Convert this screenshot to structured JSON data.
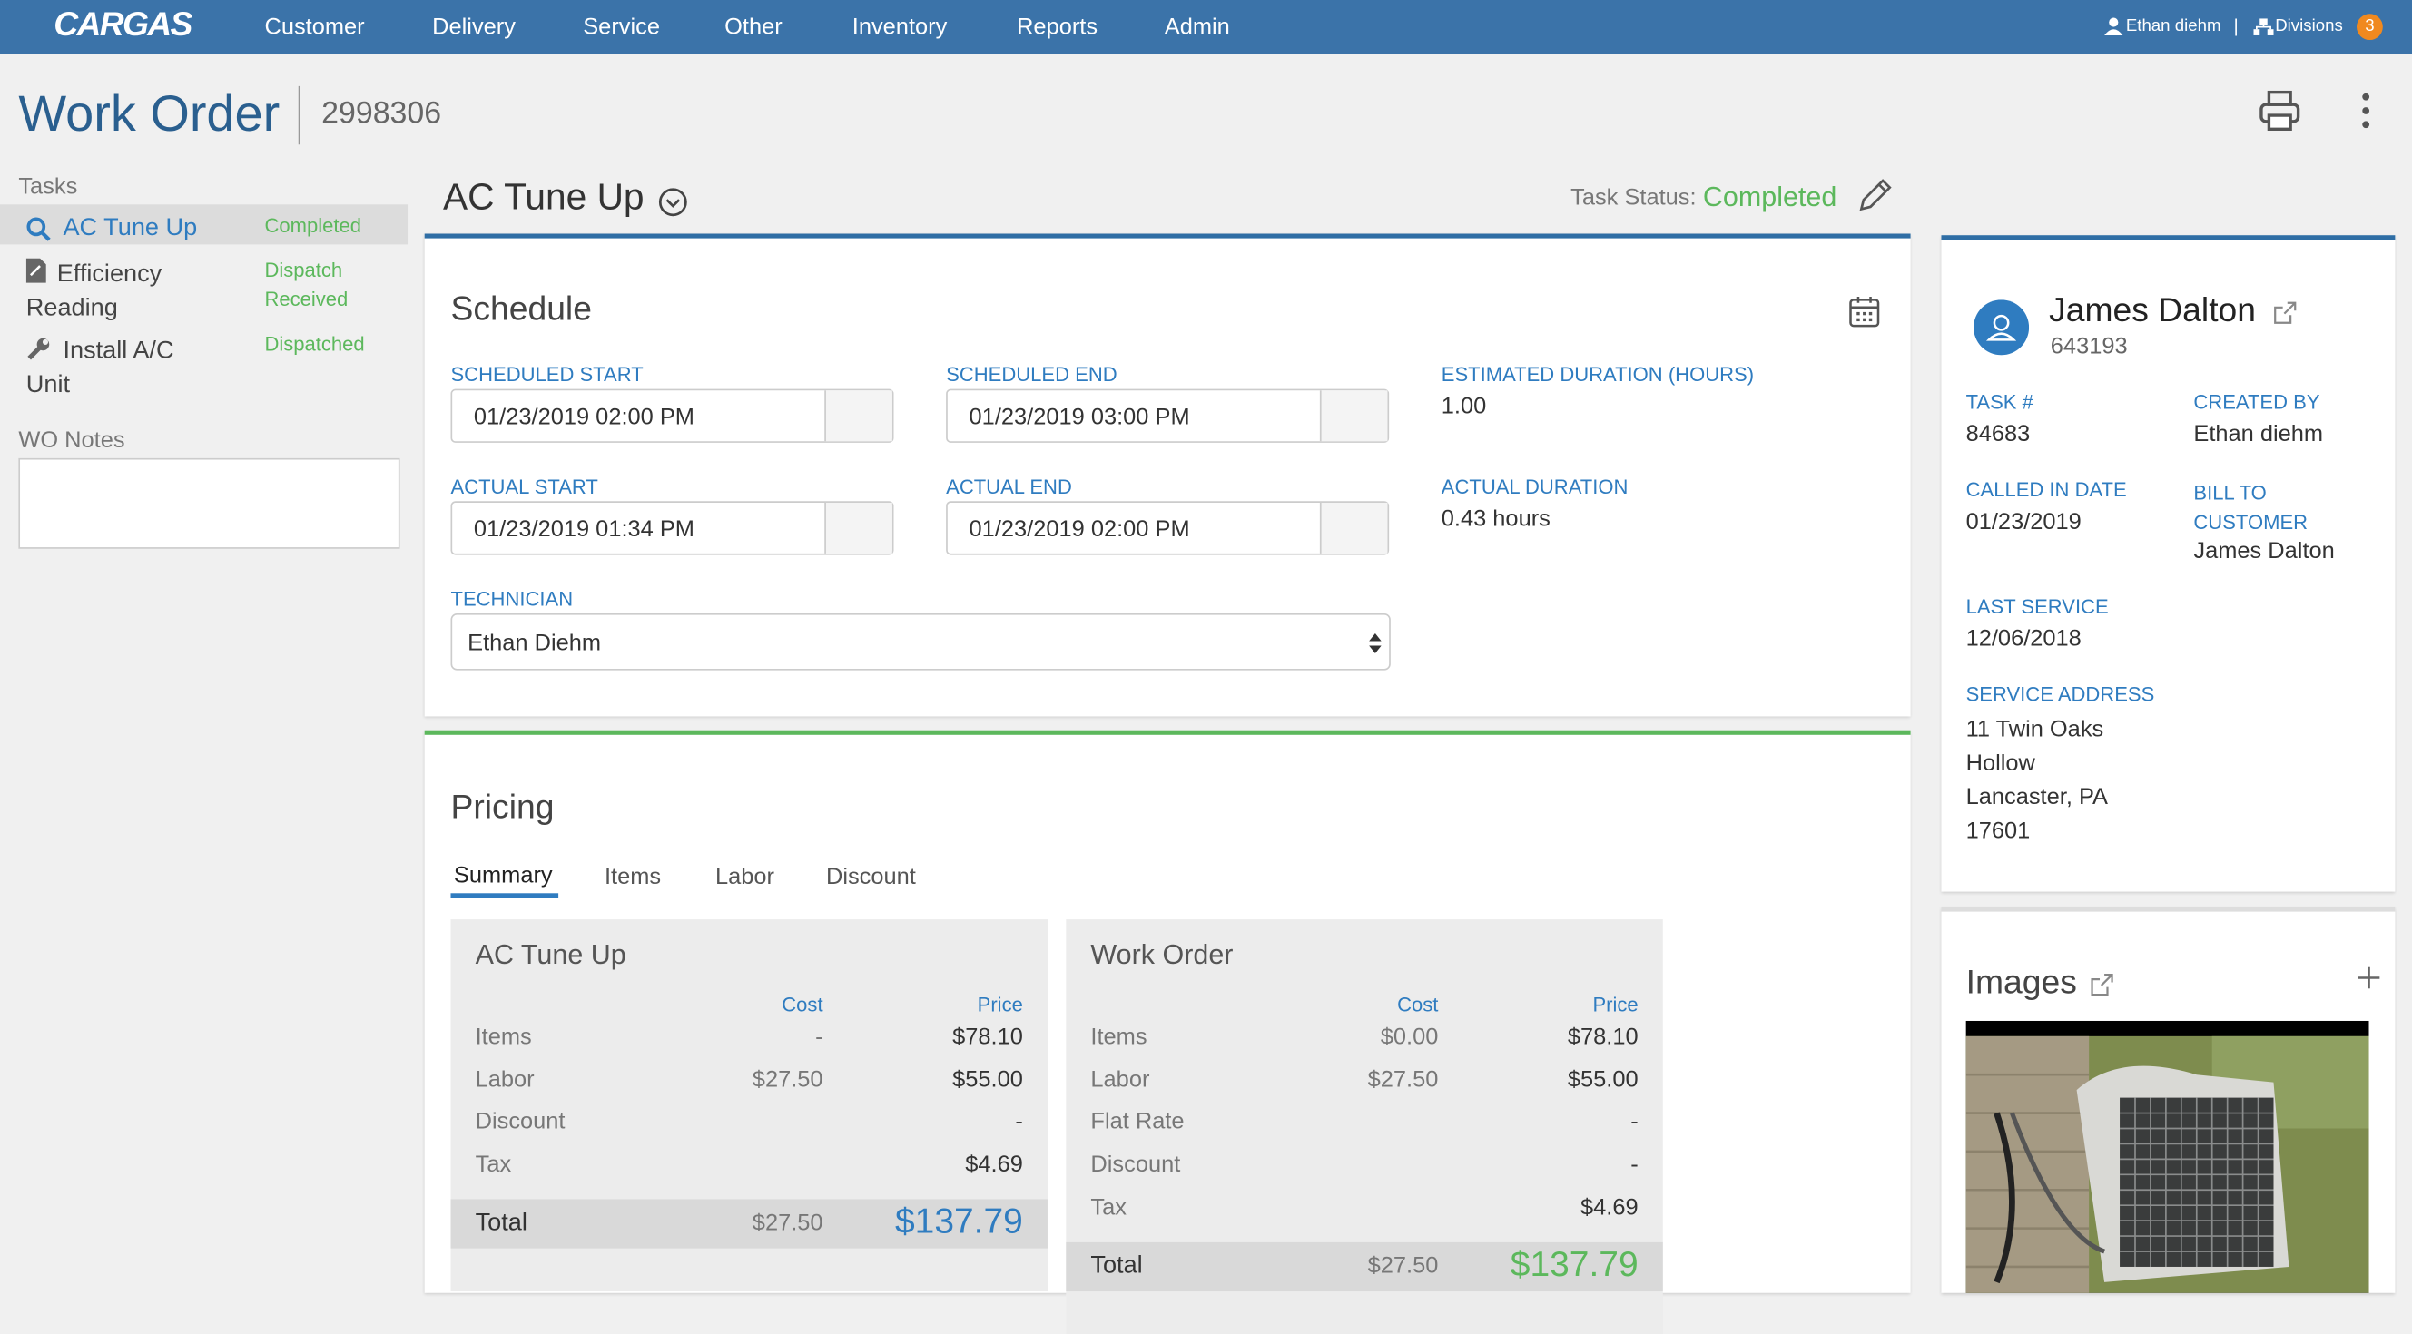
{
  "nav": {
    "logo": "CARGAS",
    "items": [
      "Customer",
      "Delivery",
      "Service",
      "Other",
      "Inventory",
      "Reports",
      "Admin"
    ],
    "user": "Ethan diehm",
    "separator": "|",
    "divisions": "Divisions",
    "badge": "3"
  },
  "header": {
    "title": "Work Order",
    "number": "2998306"
  },
  "sidebar": {
    "tasks_label": "Tasks",
    "tasks": [
      {
        "name": "AC Tune Up",
        "status": "Completed"
      },
      {
        "name": "Efficiency Reading",
        "status": "Dispatch Received"
      },
      {
        "name": "Install A/C Unit",
        "status": "Dispatched"
      }
    ],
    "notes_label": "WO Notes"
  },
  "task": {
    "title": "AC Tune Up",
    "status_label": "Task Status:",
    "status": "Completed"
  },
  "schedule": {
    "title": "Schedule",
    "scheduled_start": {
      "label": "SCHEDULED START",
      "value": "01/23/2019 02:00 PM"
    },
    "scheduled_end": {
      "label": "SCHEDULED END",
      "value": "01/23/2019 03:00 PM"
    },
    "estimated_duration": {
      "label": "ESTIMATED DURATION (HOURS)",
      "value": "1.00"
    },
    "actual_start": {
      "label": "ACTUAL START",
      "value": "01/23/2019 01:34 PM"
    },
    "actual_end": {
      "label": "ACTUAL END",
      "value": "01/23/2019 02:00 PM"
    },
    "actual_duration": {
      "label": "ACTUAL DURATION",
      "value": "0.43 hours"
    },
    "technician": {
      "label": "TECHNICIAN",
      "value": "Ethan Diehm"
    }
  },
  "pricing": {
    "title": "Pricing",
    "tabs": [
      "Summary",
      "Items",
      "Labor",
      "Discount"
    ],
    "tables": [
      {
        "title": "AC Tune Up",
        "cost_header": "Cost",
        "price_header": "Price",
        "rows": [
          {
            "label": "Items",
            "cost": "-",
            "price": "$78.10"
          },
          {
            "label": "Labor",
            "cost": "$27.50",
            "price": "$55.00"
          },
          {
            "label": "Discount",
            "price": "-"
          },
          {
            "label": "Tax",
            "price": "$4.69"
          }
        ],
        "total": {
          "label": "Total",
          "cost": "$27.50",
          "price": "$137.79"
        }
      },
      {
        "title": "Work Order",
        "cost_header": "Cost",
        "price_header": "Price",
        "rows": [
          {
            "label": "Items",
            "cost": "$0.00",
            "price": "$78.10"
          },
          {
            "label": "Labor",
            "cost": "$27.50",
            "price": "$55.00"
          },
          {
            "label": "Flat Rate",
            "price": "-"
          },
          {
            "label": "Discount",
            "price": "-"
          },
          {
            "label": "Tax",
            "price": "$4.69"
          }
        ],
        "total": {
          "label": "Total",
          "cost": "$27.50",
          "price": "$137.79"
        }
      }
    ]
  },
  "customer": {
    "name": "James Dalton",
    "id": "643193",
    "task_number": {
      "label": "TASK #",
      "value": "84683"
    },
    "created_by": {
      "label": "CREATED BY",
      "value": "Ethan diehm"
    },
    "called_in_date": {
      "label": "CALLED IN DATE",
      "value": "01/23/2019"
    },
    "bill_to": {
      "label": "BILL TO CUSTOMER",
      "value": "James Dalton"
    },
    "last_service": {
      "label": "LAST SERVICE",
      "value": "12/06/2018"
    },
    "service_address": {
      "label": "SERVICE ADDRESS",
      "lines": [
        "11 Twin Oaks Hollow",
        "Lancaster, PA 17601"
      ]
    }
  },
  "images": {
    "title": "Images"
  }
}
